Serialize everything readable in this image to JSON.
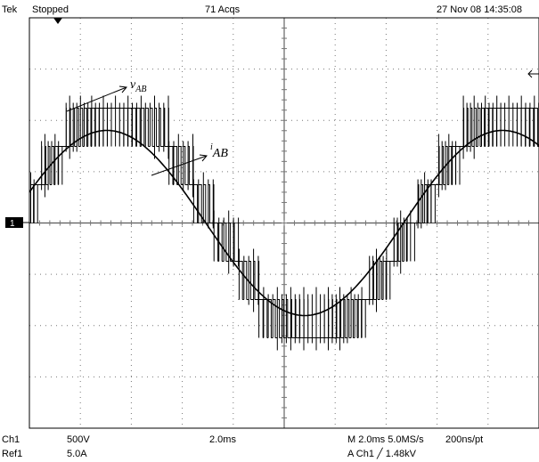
{
  "header": {
    "brand": "Tek",
    "status": "Stopped",
    "acquisitions": "71 Acqs",
    "timestamp": "27 Nov 08 14:35:08"
  },
  "annotations": [
    {
      "symbol": "v",
      "subscript": "AB"
    },
    {
      "symbol": "i",
      "subscript": "AB"
    }
  ],
  "markers": {
    "channel": "1"
  },
  "footer": {
    "row1": [
      "Ch1",
      "500V",
      "2.0ms",
      "M 2.0ms 5.0MS/s",
      "200ns/pt"
    ],
    "row2": [
      "Ref1",
      "5.0A",
      "A  Ch1  ╱  1.48kV"
    ]
  }
}
